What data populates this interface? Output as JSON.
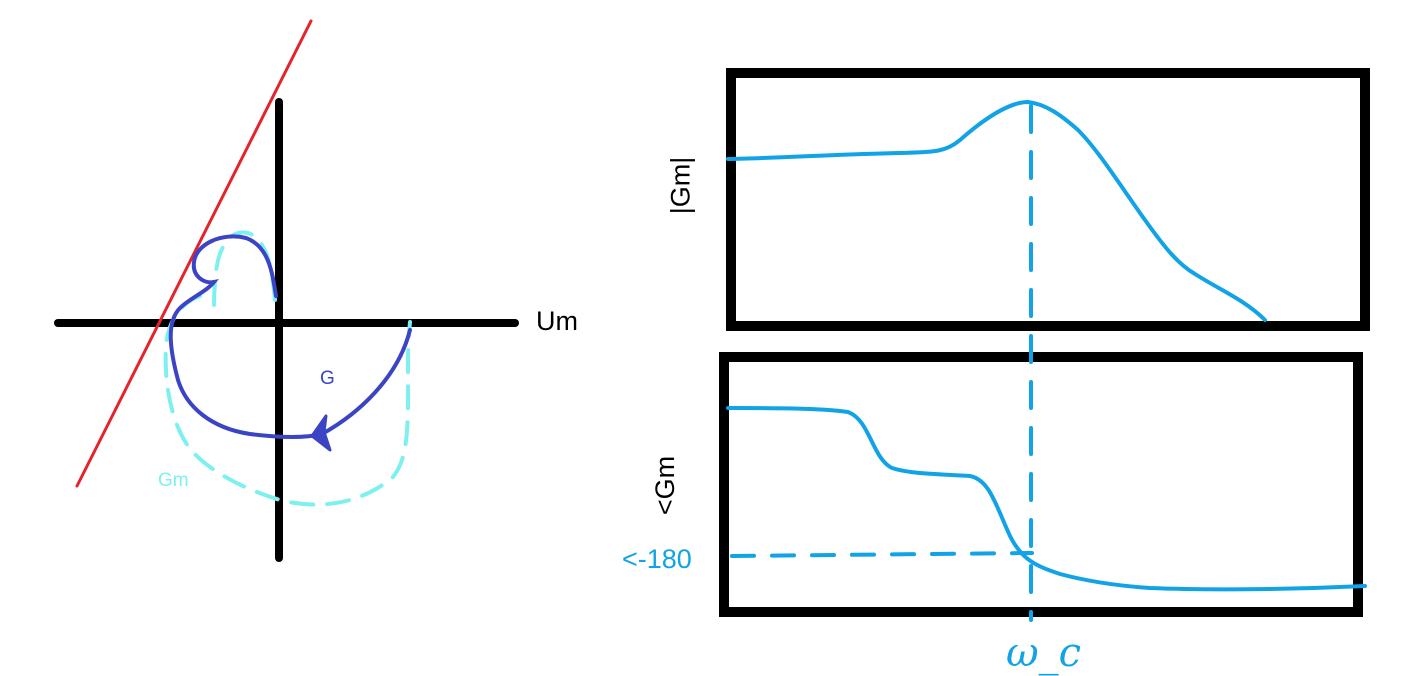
{
  "nyquist": {
    "real_axis_label": "Um",
    "curve_g_label": "G",
    "curve_gm_label": "Gm"
  },
  "bode": {
    "magnitude_ylabel": "|Gm|",
    "phase_ylabel": "<Gm",
    "phase_marker_label": "<-180",
    "crossover_label": "ω_c"
  },
  "colors": {
    "axes": "#000000",
    "curve_g": "#3b44c4",
    "curve_gm": "#7df0ef",
    "tangent_line": "#e3242b",
    "bode_curve": "#12a3e6"
  }
}
